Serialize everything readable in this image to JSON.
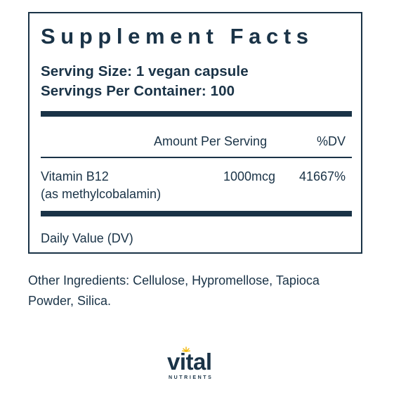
{
  "panel": {
    "title": "Supplement Facts",
    "serving_size": "Serving Size: 1 vegan capsule",
    "servings_per_container": "Servings Per Container: 100",
    "header": {
      "amount": "Amount Per Serving",
      "dv": "%DV"
    },
    "nutrients": [
      {
        "name": "Vitamin B12",
        "form": "(as methylcobalamin)",
        "amount": "1000mcg",
        "dv": "41667%"
      }
    ],
    "footer": "Daily Value (DV)"
  },
  "other_ingredients": "Other Ingredients: Cellulose, Hypromellose, Tapioca Powder, Silica.",
  "logo": {
    "text": "vital",
    "subtext": "NUTRIENTS",
    "accent_color": "#f2b705"
  },
  "colors": {
    "ink": "#1a3347",
    "background": "#ffffff"
  }
}
